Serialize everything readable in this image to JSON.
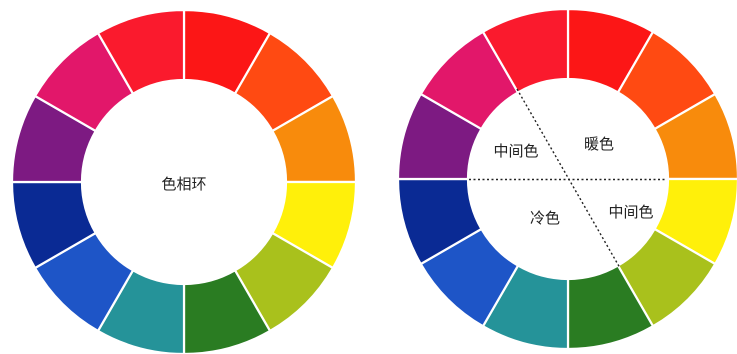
{
  "colors": [
    "#fc1616",
    "#ff4a12",
    "#f88b0c",
    "#fff00a",
    "#a9c11c",
    "#2a7c22",
    "#259399",
    "#1e55c7",
    "#0a2a94",
    "#7d1a82",
    "#e2176a",
    "#fa1a2d"
  ],
  "left_wheel": {
    "center_label": "色相环"
  },
  "right_wheel": {
    "labels": {
      "warm": "暖色",
      "neutral_top": "中间色",
      "neutral_bottom": "中间色",
      "cool": "冷色"
    }
  }
}
